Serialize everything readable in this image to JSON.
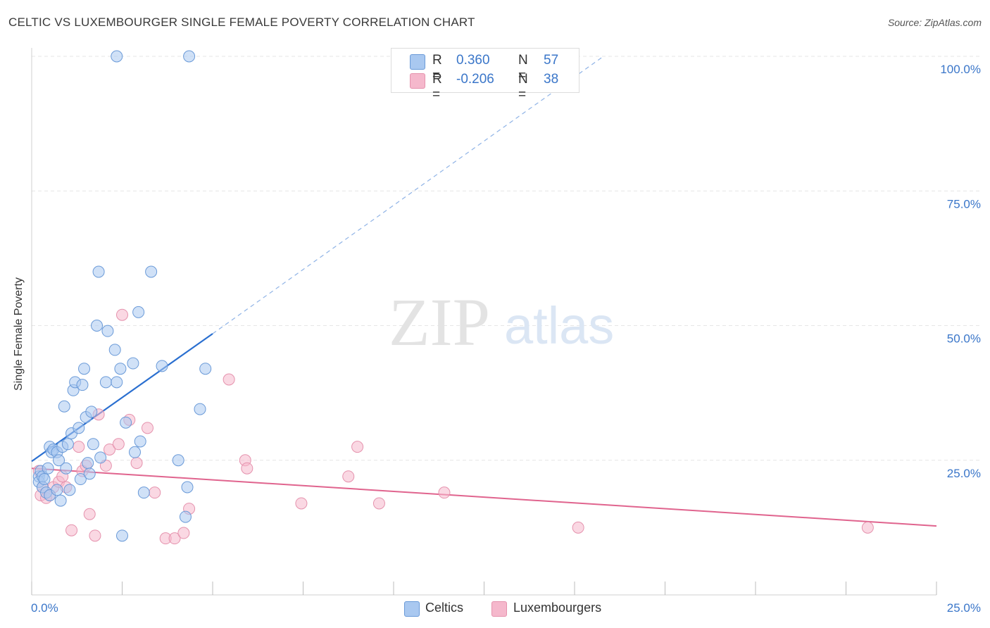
{
  "title": "CELTIC VS LUXEMBOURGER SINGLE FEMALE POVERTY CORRELATION CHART",
  "source": "Source: ZipAtlas.com",
  "watermark": {
    "zip": "ZIP",
    "atlas": "atlas"
  },
  "legend": {
    "rows": [
      {
        "r_label": "R =",
        "r_value": "0.360",
        "n_label": "N =",
        "n_value": "57"
      },
      {
        "r_label": "R =",
        "r_value": "-0.206",
        "n_label": "N =",
        "n_value": "38"
      }
    ]
  },
  "colors": {
    "celtics_fill": "#a9c8f0",
    "celtics_stroke": "#6a9ad8",
    "celtics_line": "#2a6fd0",
    "lux_fill": "#f5b8cc",
    "lux_stroke": "#e592ad",
    "lux_line": "#e0648e",
    "axis_text": "#3a76c9",
    "grid": "#e6e6e6"
  },
  "chart_data": {
    "type": "scatter",
    "title": "CELTIC VS LUXEMBOURGER SINGLE FEMALE POVERTY CORRELATION CHART",
    "xlabel": "",
    "ylabel": "Single Female Poverty",
    "xlim": [
      0,
      25
    ],
    "ylim": [
      0,
      102
    ],
    "x_tick_labels": [
      "0.0%",
      "25.0%"
    ],
    "y_tick_labels": [
      "25.0%",
      "50.0%",
      "75.0%",
      "100.0%"
    ],
    "y_ticks": [
      25,
      50,
      75,
      100
    ],
    "grid": true,
    "legend_position": "top-center",
    "series": [
      {
        "name": "Celtics",
        "points": [
          [
            0.2,
            22
          ],
          [
            0.2,
            21
          ],
          [
            0.25,
            23
          ],
          [
            0.3,
            22
          ],
          [
            0.3,
            20
          ],
          [
            0.35,
            21.5
          ],
          [
            0.4,
            19
          ],
          [
            0.45,
            23.5
          ],
          [
            0.5,
            18.5
          ],
          [
            0.5,
            27.5
          ],
          [
            0.55,
            26.5
          ],
          [
            0.6,
            27
          ],
          [
            0.7,
            26.5
          ],
          [
            0.7,
            19.5
          ],
          [
            0.75,
            25
          ],
          [
            0.8,
            17.5
          ],
          [
            0.85,
            27.5
          ],
          [
            0.9,
            35
          ],
          [
            0.95,
            23.5
          ],
          [
            1.0,
            28
          ],
          [
            1.05,
            19.5
          ],
          [
            1.1,
            30
          ],
          [
            1.15,
            38
          ],
          [
            1.2,
            39.5
          ],
          [
            1.3,
            31
          ],
          [
            1.35,
            21.5
          ],
          [
            1.4,
            39
          ],
          [
            1.45,
            42
          ],
          [
            1.5,
            33
          ],
          [
            1.55,
            24.5
          ],
          [
            1.6,
            22.5
          ],
          [
            1.65,
            34
          ],
          [
            1.7,
            28
          ],
          [
            1.8,
            50
          ],
          [
            1.85,
            60
          ],
          [
            1.9,
            25.5
          ],
          [
            2.05,
            39.5
          ],
          [
            2.1,
            49
          ],
          [
            2.3,
            45.5
          ],
          [
            2.35,
            100
          ],
          [
            2.35,
            39.5
          ],
          [
            2.45,
            42
          ],
          [
            2.5,
            11
          ],
          [
            2.6,
            32
          ],
          [
            2.8,
            43
          ],
          [
            2.85,
            26.5
          ],
          [
            2.95,
            52.5
          ],
          [
            3.0,
            28.5
          ],
          [
            3.1,
            19
          ],
          [
            3.3,
            60
          ],
          [
            3.6,
            42.5
          ],
          [
            4.05,
            25
          ],
          [
            4.25,
            14.5
          ],
          [
            4.3,
            20
          ],
          [
            4.35,
            100
          ],
          [
            4.65,
            34.5
          ],
          [
            4.8,
            42
          ]
        ]
      },
      {
        "name": "Luxembourgers",
        "points": [
          [
            0.2,
            23
          ],
          [
            0.25,
            18.5
          ],
          [
            0.3,
            20
          ],
          [
            0.4,
            18
          ],
          [
            0.5,
            18.5
          ],
          [
            0.6,
            20
          ],
          [
            0.75,
            21
          ],
          [
            0.85,
            22
          ],
          [
            0.95,
            20
          ],
          [
            1.1,
            12
          ],
          [
            1.3,
            27.5
          ],
          [
            1.4,
            23
          ],
          [
            1.5,
            24
          ],
          [
            1.6,
            15
          ],
          [
            1.75,
            11
          ],
          [
            1.85,
            33.5
          ],
          [
            2.05,
            24
          ],
          [
            2.15,
            27
          ],
          [
            2.4,
            28
          ],
          [
            2.5,
            52
          ],
          [
            2.7,
            32.5
          ],
          [
            2.9,
            24.5
          ],
          [
            3.2,
            31
          ],
          [
            3.4,
            19
          ],
          [
            3.7,
            10.5
          ],
          [
            3.95,
            10.5
          ],
          [
            4.2,
            11.5
          ],
          [
            4.35,
            16
          ],
          [
            5.45,
            40
          ],
          [
            5.9,
            25
          ],
          [
            5.95,
            23.5
          ],
          [
            7.45,
            17
          ],
          [
            8.75,
            22
          ],
          [
            9.0,
            27.5
          ],
          [
            9.6,
            17
          ],
          [
            11.4,
            19
          ],
          [
            15.1,
            12.5
          ],
          [
            23.1,
            12.5
          ]
        ]
      }
    ],
    "trend_lines": [
      {
        "series": "Celtics",
        "x_solid": [
          0,
          5
        ],
        "y_solid": [
          24.8,
          48.5
        ],
        "x_dashed": [
          5,
          15.8
        ],
        "y_dashed": [
          48.5,
          100
        ]
      },
      {
        "series": "Luxembourgers",
        "x": [
          0,
          25
        ],
        "y": [
          23.5,
          12.8
        ]
      }
    ]
  },
  "bottom_legend": {
    "items": [
      {
        "label": "Celtics"
      },
      {
        "label": "Luxembourgers"
      }
    ]
  }
}
